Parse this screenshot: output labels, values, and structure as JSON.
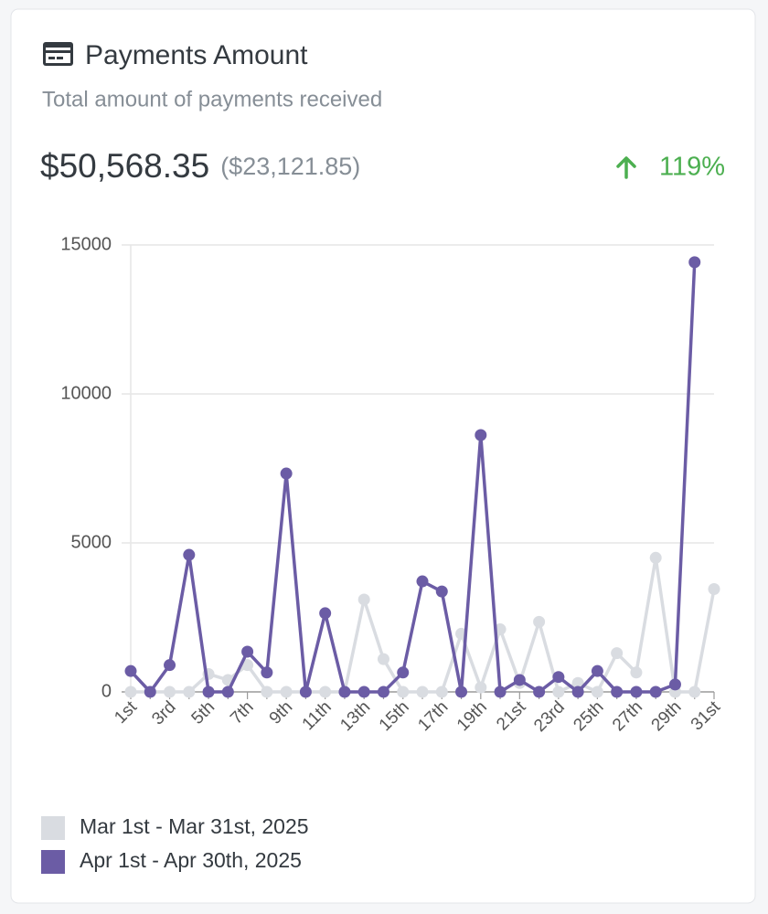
{
  "chart_data": {
    "type": "line",
    "title": "Payments Amount",
    "subtitle": "Total amount of payments received",
    "total": "$50,568.35",
    "previous_total": "($23,121.85)",
    "change": "119%",
    "categories": [
      "1st",
      null,
      "3rd",
      null,
      "5th",
      null,
      "7th",
      null,
      "9th",
      null,
      "11th",
      null,
      "13th",
      null,
      "15th",
      null,
      "17th",
      null,
      "19th",
      null,
      "21st",
      null,
      "23rd",
      null,
      "25th",
      null,
      "27th",
      null,
      "29th",
      null,
      "31st"
    ],
    "series": [
      {
        "name": "Mar 1st - Mar 31st, 2025",
        "color": "#d9dce1",
        "values": [
          0,
          0,
          0,
          0,
          600,
          400,
          900,
          0,
          0,
          0,
          0,
          0,
          3100,
          1100,
          0,
          0,
          0,
          1950,
          150,
          2100,
          300,
          2350,
          0,
          300,
          0,
          1300,
          650,
          4500,
          0,
          0,
          3450
        ]
      },
      {
        "name": "Apr 1st - Apr 30th, 2025",
        "color": "#6b5ca5",
        "values": [
          700,
          0,
          900,
          4600,
          0,
          0,
          1350,
          650,
          7330,
          0,
          2640,
          0,
          0,
          0,
          650,
          3710,
          3370,
          0,
          8620,
          0,
          400,
          0,
          500,
          0,
          700,
          0,
          0,
          0,
          250,
          14420,
          null
        ]
      }
    ],
    "ylim": [
      0,
      15000
    ],
    "yticks": [
      0,
      5000,
      10000,
      15000
    ],
    "grid": true
  }
}
